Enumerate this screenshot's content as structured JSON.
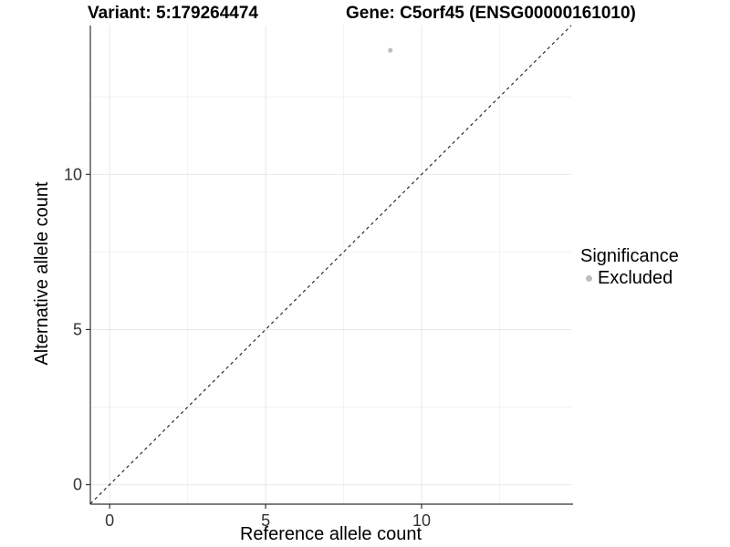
{
  "chart_data": {
    "type": "scatter",
    "titles": [
      "Variant: 5:179264474",
      "Gene: C5orf45 (ENSG00000161010)"
    ],
    "xlabel": "Reference allele count",
    "ylabel": "Alternative allele count",
    "xlim": [
      -0.62,
      14.8
    ],
    "ylim": [
      -0.63,
      14.8
    ],
    "x_ticks": [
      0,
      5,
      10
    ],
    "y_ticks": [
      0,
      5,
      10
    ],
    "x_minor_ticks": [
      2.5,
      7.5,
      12.5
    ],
    "y_minor_ticks": [
      2.5,
      7.5,
      12.5
    ],
    "grid": true,
    "reference_line": {
      "type": "identity",
      "style": "dashed",
      "color": "#1a1a1a"
    },
    "series": [
      {
        "name": "Excluded",
        "color": "#bebebe",
        "points": [
          {
            "x": 9,
            "y": 14
          }
        ]
      }
    ],
    "legend": {
      "title": "Significance",
      "position": "right",
      "items": [
        {
          "label": "Excluded",
          "color": "#bebebe"
        }
      ]
    },
    "colors": {
      "point": "#bebebe",
      "grid_major": "#e9e9e9",
      "grid_minor": "#f2f2f2",
      "axis": "#333333",
      "tick_text": "#333333",
      "diagonal": "#1a1a1a"
    }
  }
}
